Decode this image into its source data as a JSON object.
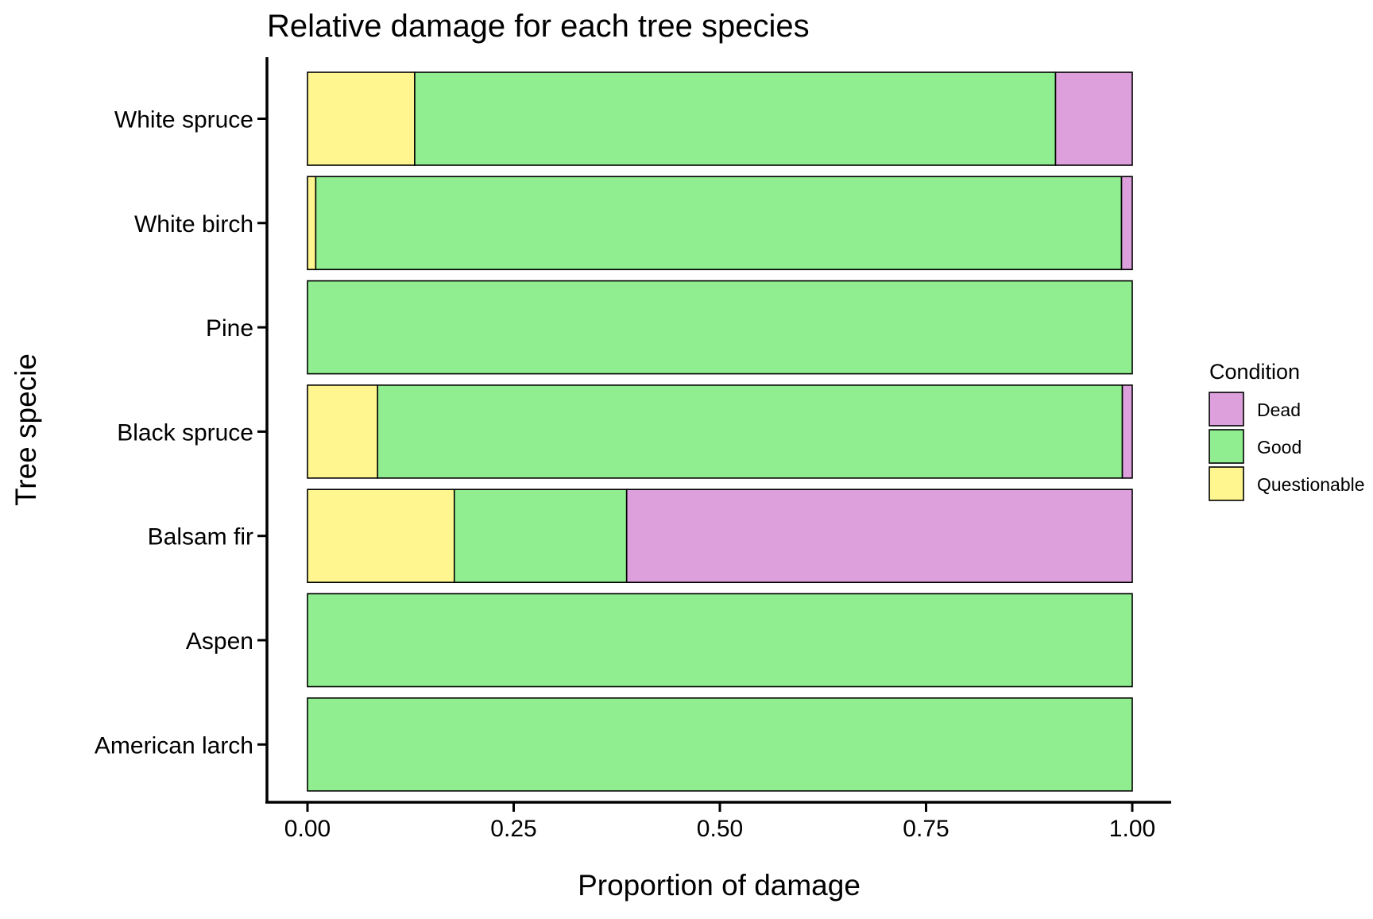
{
  "chart_data": {
    "type": "bar",
    "orientation": "horizontal",
    "stacked": true,
    "title": "Relative damage for each tree species",
    "xlabel": "Proportion of damage",
    "ylabel": "Tree specie",
    "xlim": [
      0,
      1
    ],
    "xticks": [
      "0.00",
      "0.25",
      "0.50",
      "0.75",
      "1.00"
    ],
    "grid": false,
    "categories": [
      "White spruce",
      "White birch",
      "Pine",
      "Black spruce",
      "Balsam fir",
      "Aspen",
      "American larch"
    ],
    "series": [
      {
        "name": "Questionable",
        "color": "#FFF68F",
        "values": [
          0.13,
          0.01,
          0.0,
          0.085,
          0.178,
          0.0,
          0.0
        ]
      },
      {
        "name": "Good",
        "color": "#90EE90",
        "values": [
          0.777,
          0.977,
          1.0,
          0.903,
          0.209,
          1.0,
          1.0
        ]
      },
      {
        "name": "Dead",
        "color": "#DDA0DD",
        "values": [
          0.093,
          0.013,
          0.0,
          0.012,
          0.613,
          0.0,
          0.0
        ]
      }
    ],
    "legend": {
      "title": "Condition",
      "placement": "right",
      "entries": [
        {
          "label": "Dead",
          "color": "#DDA0DD"
        },
        {
          "label": "Good",
          "color": "#90EE90"
        },
        {
          "label": "Questionable",
          "color": "#FFF68F"
        }
      ]
    }
  }
}
